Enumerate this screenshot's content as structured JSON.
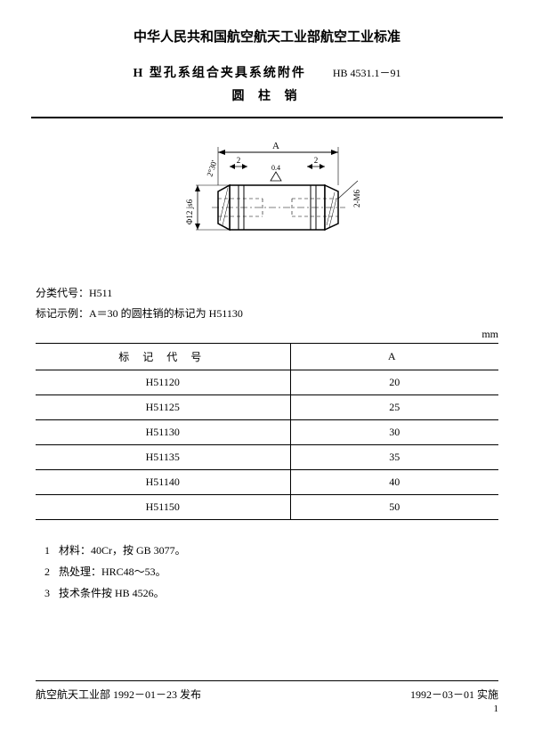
{
  "header": {
    "org_title": "中华人民共和国航空航天工业部航空工业标准",
    "doc_title": "H 型孔系组合夹具系统附件",
    "std_number": "HB 4531.1－91",
    "doc_subtitle": "圆 柱 销"
  },
  "diagram": {
    "dim_A": "A",
    "dim_2_left": "2",
    "dim_2_right": "2",
    "surface": "0.4",
    "angle": "2°30'",
    "diameter": "Φ12 js6",
    "thread": "2-M6",
    "colors": {
      "stroke": "#000000",
      "fill": "#ffffff",
      "hatch": "#000000"
    }
  },
  "meta": {
    "class_label": "分类代号：",
    "class_value": "H511",
    "example_label": "标记示例：",
    "example_value": "A＝30 的圆柱销的标记为 H51130"
  },
  "table": {
    "unit": "mm",
    "col1_header": "标 记 代 号",
    "col2_header": "A",
    "rows": [
      {
        "code": "H51120",
        "a": "20"
      },
      {
        "code": "H51125",
        "a": "25"
      },
      {
        "code": "H51130",
        "a": "30"
      },
      {
        "code": "H51135",
        "a": "35"
      },
      {
        "code": "H51140",
        "a": "40"
      },
      {
        "code": "H51150",
        "a": "50"
      }
    ]
  },
  "notes": {
    "items": [
      {
        "n": "1",
        "text": "材料：40Cr，按 GB 3077。"
      },
      {
        "n": "2",
        "text": "热处理：HRC48～53。"
      },
      {
        "n": "3",
        "text": "技术条件按 HB 4526。"
      }
    ]
  },
  "footer": {
    "left": "航空航天工业部 1992－01－23 发布",
    "right": "1992－03－01 实施",
    "page": "1"
  }
}
